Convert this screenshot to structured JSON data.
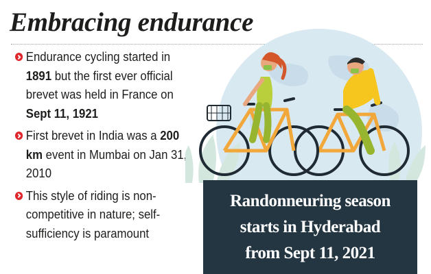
{
  "headline": "Embracing endurance",
  "bullets": [
    {
      "parts": [
        "Endurance cycling started in",
        "1891",
        "but the first ever official brevet was held in France on",
        "Sept 11, 1921",
        ""
      ]
    },
    {
      "parts": [
        "First brevet in India was a",
        "200 km",
        "event in Mumbai on Jan 31, 2010",
        "",
        ""
      ]
    },
    {
      "parts": [
        "This style of riding is non-competitive in nature; self-sufficiency is paramount",
        "",
        "",
        "",
        ""
      ]
    }
  ],
  "caption": {
    "line1": "Randonneuring season",
    "line2": "starts in Hyderabad",
    "line3": "from Sept 11, 2021"
  },
  "colors": {
    "bullet_marker": "#e0252b",
    "caption_background": "#243641",
    "bike_frame": "#f2a73b",
    "globe": "#d9e9f1",
    "foliage": "#d3e7df"
  },
  "icons": [
    "check-circle-icon",
    "cyclist-woman-illustration",
    "cyclist-man-illustration",
    "globe-illustration"
  ]
}
